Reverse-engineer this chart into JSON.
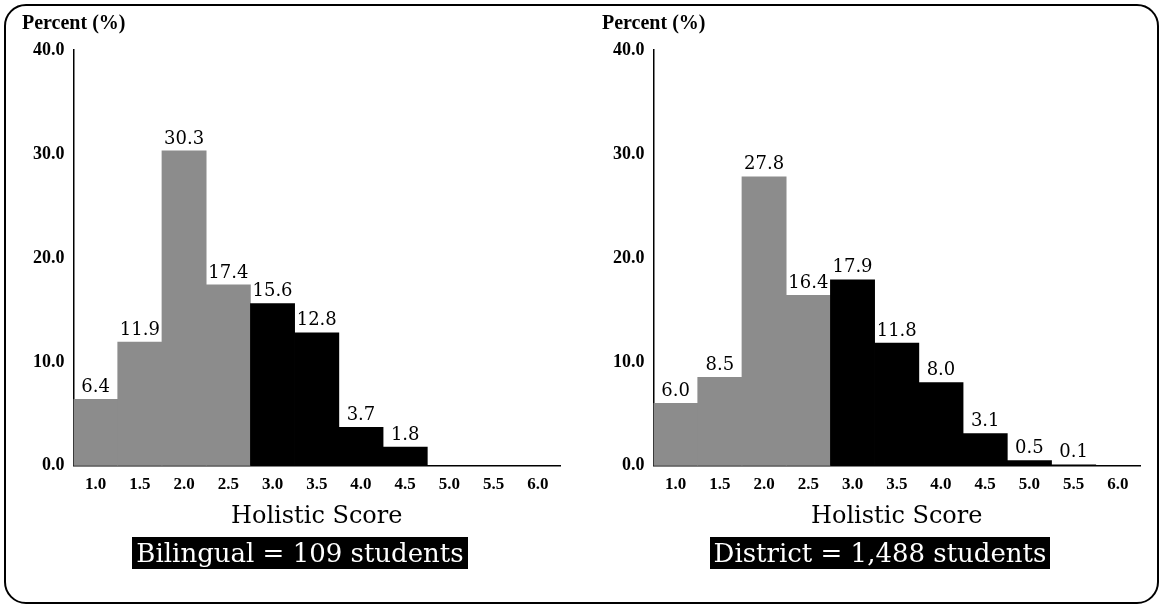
{
  "chart_data": [
    {
      "type": "bar",
      "ylabel": "Percent (%)",
      "xlabel": "Holistic Score",
      "categories": [
        "1.0",
        "1.5",
        "2.0",
        "2.5",
        "3.0",
        "3.5",
        "4.0",
        "4.5",
        "5.0",
        "5.5",
        "6.0"
      ],
      "values": [
        6.4,
        11.9,
        30.3,
        17.4,
        15.6,
        12.8,
        3.7,
        1.8,
        null,
        null,
        null
      ],
      "colors": [
        "#8c8c8c",
        "#8c8c8c",
        "#8c8c8c",
        "#8c8c8c",
        "#000000",
        "#000000",
        "#000000",
        "#000000",
        "#000000",
        "#000000",
        "#000000"
      ],
      "ylim": [
        0,
        40
      ],
      "yticks": [
        {
          "value": 0,
          "label": "0.0"
        },
        {
          "value": 10,
          "label": "10.0"
        },
        {
          "value": 20,
          "label": "20.0"
        },
        {
          "value": 30,
          "label": "30.0"
        },
        {
          "value": 40,
          "label": "40.0"
        }
      ],
      "value_labels": [
        "6.4",
        "11.9",
        "30.3",
        "17.4",
        "15.6",
        "12.8",
        "3.7",
        "1.8",
        null,
        null,
        null
      ],
      "grid": false,
      "legend": false,
      "annotations": [
        "Bilingual = 109 students"
      ]
    },
    {
      "type": "bar",
      "ylabel": "Percent (%)",
      "xlabel": "Holistic Score",
      "categories": [
        "1.0",
        "1.5",
        "2.0",
        "2.5",
        "3.0",
        "3.5",
        "4.0",
        "4.5",
        "5.0",
        "5.5",
        "6.0"
      ],
      "values": [
        6.0,
        8.5,
        27.8,
        16.4,
        17.9,
        11.8,
        8.0,
        3.1,
        0.5,
        0.1,
        null
      ],
      "colors": [
        "#8c8c8c",
        "#8c8c8c",
        "#8c8c8c",
        "#8c8c8c",
        "#000000",
        "#000000",
        "#000000",
        "#000000",
        "#000000",
        "#000000",
        "#000000"
      ],
      "ylim": [
        0,
        40
      ],
      "yticks": [
        {
          "value": 0,
          "label": "0.0"
        },
        {
          "value": 10,
          "label": "10.0"
        },
        {
          "value": 20,
          "label": "20.0"
        },
        {
          "value": 30,
          "label": "30.0"
        },
        {
          "value": 40,
          "label": "40.0"
        }
      ],
      "value_labels": [
        "6.0",
        "8.5",
        "27.8",
        "16.4",
        "17.9",
        "11.8",
        "8.0",
        "3.1",
        "0.5",
        "0.1",
        null
      ],
      "grid": false,
      "legend": false,
      "annotations": [
        "District = 1,488 students"
      ]
    }
  ]
}
